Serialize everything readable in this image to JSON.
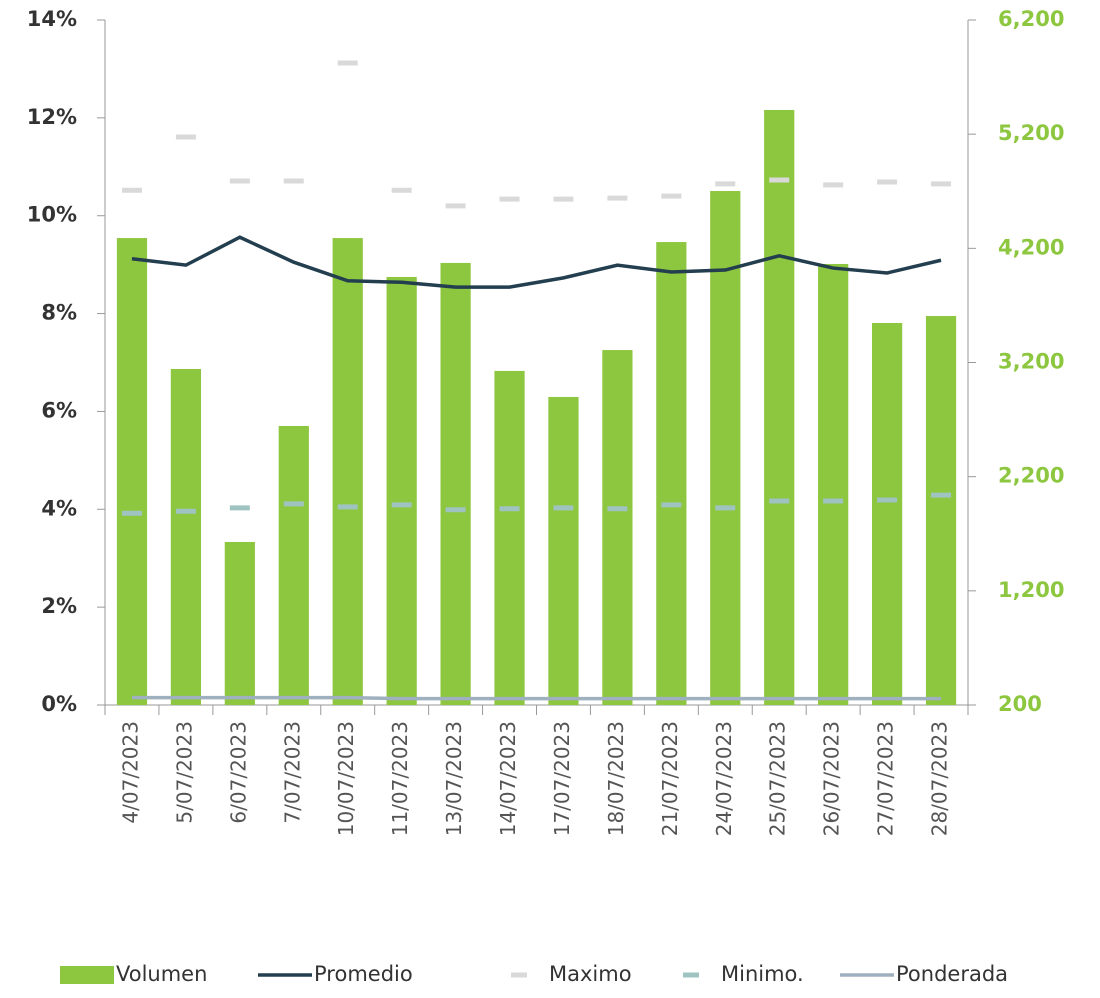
{
  "chart_data": {
    "type": "bar",
    "categories": [
      "4/07/2023",
      "5/07/2023",
      "6/07/2023",
      "7/07/2023",
      "10/07/2023",
      "11/07/2023",
      "13/07/2023",
      "14/07/2023",
      "17/07/2023",
      "18/07/2023",
      "21/07/2023",
      "24/07/2023",
      "25/07/2023",
      "26/07/2023",
      "27/07/2023",
      "28/07/2023"
    ],
    "series": [
      {
        "name": "Volumen",
        "type": "bar",
        "axis": "y2",
        "color": "#8dc63f",
        "values": [
          4290,
          3143,
          1628,
          2644,
          4290,
          3949,
          4072,
          3126,
          2898,
          3309,
          4255,
          4702,
          5412,
          4063,
          3546,
          3607
        ]
      },
      {
        "name": "Promedio",
        "type": "line",
        "color": "#233f4f",
        "values": [
          9.12,
          8.99,
          9.56,
          9.05,
          8.67,
          8.64,
          8.54,
          8.54,
          8.73,
          8.99,
          8.85,
          8.89,
          9.18,
          8.93,
          8.83,
          9.09
        ]
      },
      {
        "name": "Maximo",
        "type": "marker",
        "color": "#d9d9d9",
        "values": [
          10.52,
          11.61,
          10.71,
          10.71,
          13.12,
          10.52,
          10.2,
          10.34,
          10.34,
          10.36,
          10.4,
          10.65,
          10.73,
          10.63,
          10.69,
          10.65
        ]
      },
      {
        "name": "Minimo.",
        "type": "marker",
        "color": "#9fc3c0",
        "values": [
          3.92,
          3.96,
          4.03,
          4.11,
          4.05,
          4.09,
          3.99,
          4.01,
          4.03,
          4.01,
          4.09,
          4.03,
          4.17,
          4.17,
          4.19,
          4.29
        ]
      },
      {
        "name": "Ponderada",
        "type": "line",
        "color": "#9fb0bf",
        "values": [
          0.15,
          0.15,
          0.15,
          0.15,
          0.15,
          0.13,
          0.13,
          0.13,
          0.13,
          0.13,
          0.13,
          0.13,
          0.13,
          0.13,
          0.13,
          0.13
        ]
      }
    ],
    "ylim": [
      0,
      14
    ],
    "yticks": [
      {
        "value": 0,
        "label": "0%"
      },
      {
        "value": 2,
        "label": "2%"
      },
      {
        "value": 4,
        "label": "4%"
      },
      {
        "value": 6,
        "label": "6%"
      },
      {
        "value": 8,
        "label": "8%"
      },
      {
        "value": 10,
        "label": "10%"
      },
      {
        "value": 12,
        "label": "12%"
      },
      {
        "value": 14,
        "label": "14%"
      }
    ],
    "y2lim": [
      200,
      6200
    ],
    "y2ticks": [
      200,
      {
        "value": 1200,
        "label": "1,200"
      },
      {
        "value": 2200,
        "label": "2,200"
      },
      {
        "value": 3200,
        "label": "3,200"
      },
      {
        "value": 4200,
        "label": "4,200"
      },
      {
        "value": 5200,
        "label": "5,200"
      },
      {
        "value": 6200,
        "label": "6,200"
      }
    ],
    "legend": "bottom"
  }
}
